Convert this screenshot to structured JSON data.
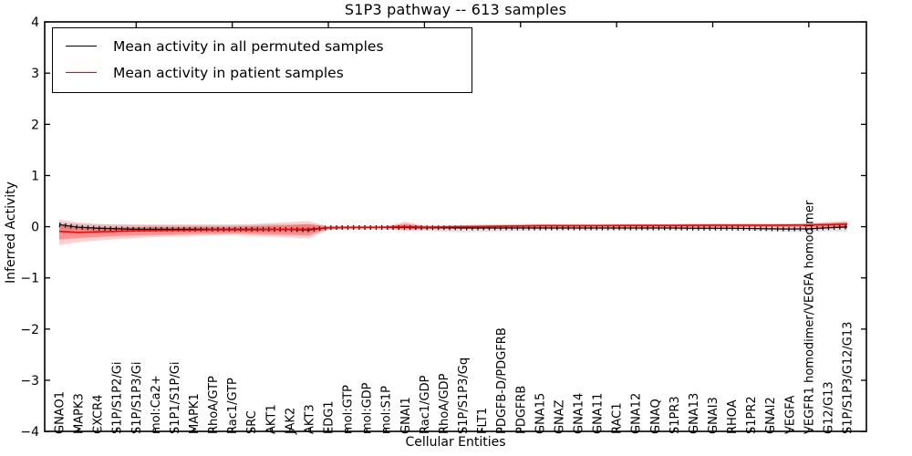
{
  "chart_data": {
    "type": "line",
    "title": "S1P3 pathway -- 613 samples",
    "xlabel": "Cellular Entities",
    "ylabel": "Inferred Activity",
    "ylim": [
      -4,
      4
    ],
    "yticks": [
      4,
      3,
      2,
      1,
      0,
      -1,
      -2,
      -3,
      -4
    ],
    "ytick_labels": [
      "4",
      "3",
      "2",
      "1",
      "0",
      "−1",
      "−2",
      "−3",
      "−4"
    ],
    "grid": false,
    "legend": {
      "position": "upper left",
      "entries": [
        "Mean activity in all permuted samples",
        "Mean activity in patient samples"
      ]
    },
    "categories": [
      "GNAO1",
      "MAPK3",
      "CXCR4",
      "S1P/S1P2/Gi",
      "S1P/S1P3/Gi",
      "mol:Ca2+",
      "S1P1/S1P/Gi",
      "MAPK1",
      "RhoA/GTP",
      "Rac1/GTP",
      "SRC",
      "AKT1",
      "JAK2",
      "AKT3",
      "EDG1",
      "mol:GTP",
      "mol:GDP",
      "mol:S1P",
      "GNAI1",
      "Rac1/GDP",
      "RhoA/GDP",
      "S1P/S1P3/Gq",
      "FLT1",
      "PDGFB-D/PDGFRB",
      "PDGFRB",
      "GNA15",
      "GNAZ",
      "GNA14",
      "GNA11",
      "RAC1",
      "GNA12",
      "GNAQ",
      "S1PR3",
      "GNA13",
      "GNAI3",
      "RHOA",
      "S1PR2",
      "GNAI2",
      "VEGFA",
      "VEGFR1 homodimer/VEGFA homodimer",
      "G12/G13",
      "S1P/S1P3/G12/G13"
    ],
    "series": [
      {
        "name": "Mean activity in all permuted samples",
        "color": "#000000",
        "values": [
          0.04,
          -0.01,
          -0.03,
          -0.04,
          -0.05,
          -0.05,
          -0.05,
          -0.05,
          -0.05,
          -0.05,
          -0.05,
          -0.05,
          -0.055,
          -0.06,
          -0.02,
          -0.015,
          -0.015,
          -0.015,
          -0.015,
          -0.02,
          -0.02,
          -0.025,
          -0.025,
          -0.025,
          -0.025,
          -0.025,
          -0.025,
          -0.025,
          -0.025,
          -0.025,
          -0.025,
          -0.025,
          -0.025,
          -0.03,
          -0.03,
          -0.03,
          -0.035,
          -0.04,
          -0.045,
          -0.04,
          -0.02,
          -0.005
        ]
      },
      {
        "name": "Mean activity in patient samples",
        "color": "#ff0000",
        "values": [
          -0.09,
          -0.11,
          -0.1,
          -0.09,
          -0.08,
          -0.075,
          -0.07,
          -0.065,
          -0.06,
          -0.06,
          -0.06,
          -0.055,
          -0.05,
          -0.045,
          -0.02,
          -0.015,
          -0.012,
          -0.01,
          0.0,
          -0.01,
          -0.005,
          0.0,
          0.005,
          0.01,
          0.015,
          0.02,
          0.02,
          0.02,
          0.022,
          0.024,
          0.025,
          0.025,
          0.025,
          0.028,
          0.03,
          0.03,
          0.03,
          0.03,
          0.032,
          0.035,
          0.04,
          0.05
        ]
      }
    ],
    "bands": [
      {
        "name": "permuted-samples-spread",
        "color": "rgba(130,130,130,0.22)",
        "upper": [
          0.08,
          0.06,
          0.05,
          0.05,
          0.04,
          0.04,
          0.04,
          0.04,
          0.04,
          0.04,
          0.04,
          0.05,
          0.05,
          0.05,
          0.02,
          0.02,
          0.02,
          0.02,
          0.03,
          0.03,
          0.03,
          0.03,
          0.03,
          0.03,
          0.03,
          0.03,
          0.03,
          0.03,
          0.03,
          0.03,
          0.03,
          0.03,
          0.03,
          0.03,
          0.03,
          0.03,
          0.03,
          0.03,
          0.03,
          0.04,
          0.05,
          0.07
        ],
        "lower": [
          -0.05,
          -0.07,
          -0.08,
          -0.08,
          -0.09,
          -0.09,
          -0.09,
          -0.09,
          -0.09,
          -0.09,
          -0.1,
          -0.1,
          -0.11,
          -0.12,
          -0.05,
          -0.04,
          -0.04,
          -0.04,
          -0.06,
          -0.08,
          -0.1,
          -0.11,
          -0.1,
          -0.09,
          -0.08,
          -0.07,
          -0.07,
          -0.07,
          -0.07,
          -0.07,
          -0.07,
          -0.07,
          -0.07,
          -0.07,
          -0.07,
          -0.07,
          -0.08,
          -0.09,
          -0.1,
          -0.1,
          -0.09,
          -0.1
        ]
      },
      {
        "name": "patient-samples-outer-spread",
        "color": "rgba(255,0,0,0.18)",
        "upper": [
          0.14,
          0.08,
          0.05,
          0.04,
          0.04,
          0.04,
          0.04,
          0.04,
          0.04,
          0.04,
          0.05,
          0.07,
          0.09,
          0.11,
          0.01,
          0.01,
          0.01,
          0.01,
          0.1,
          0.02,
          0.02,
          0.03,
          0.04,
          0.04,
          0.05,
          0.05,
          0.05,
          0.05,
          0.05,
          0.055,
          0.055,
          0.055,
          0.055,
          0.06,
          0.06,
          0.06,
          0.06,
          0.06,
          0.06,
          0.065,
          0.09,
          0.11
        ],
        "lower": [
          -0.36,
          -0.3,
          -0.27,
          -0.24,
          -0.22,
          -0.2,
          -0.19,
          -0.18,
          -0.17,
          -0.17,
          -0.18,
          -0.19,
          -0.21,
          -0.23,
          -0.06,
          -0.04,
          -0.04,
          -0.04,
          -0.08,
          -0.05,
          -0.04,
          -0.04,
          -0.03,
          -0.03,
          -0.02,
          -0.02,
          -0.01,
          -0.01,
          -0.01,
          -0.01,
          -0.01,
          -0.01,
          -0.01,
          -0.01,
          -0.01,
          -0.01,
          -0.01,
          -0.01,
          -0.01,
          -0.02,
          -0.02,
          -0.03
        ]
      },
      {
        "name": "patient-samples-inner-spread",
        "color": "rgba(255,0,0,0.32)",
        "upper": [
          0.02,
          0.0,
          -0.01,
          -0.01,
          -0.01,
          0.0,
          0.0,
          0.0,
          0.0,
          0.0,
          0.01,
          0.02,
          0.03,
          0.05,
          0.0,
          0.0,
          0.0,
          0.0,
          0.06,
          0.01,
          0.01,
          0.02,
          0.02,
          0.03,
          0.03,
          0.04,
          0.04,
          0.04,
          0.04,
          0.045,
          0.045,
          0.045,
          0.045,
          0.05,
          0.05,
          0.05,
          0.05,
          0.05,
          0.05,
          0.055,
          0.07,
          0.09
        ],
        "lower": [
          -0.25,
          -0.22,
          -0.2,
          -0.18,
          -0.17,
          -0.16,
          -0.15,
          -0.14,
          -0.14,
          -0.13,
          -0.14,
          -0.15,
          -0.16,
          -0.17,
          -0.04,
          -0.03,
          -0.03,
          -0.03,
          -0.05,
          -0.03,
          -0.03,
          -0.02,
          -0.02,
          -0.01,
          -0.01,
          0.0,
          0.0,
          0.0,
          0.0,
          0.0,
          0.0,
          0.0,
          0.0,
          0.0,
          0.0,
          0.0,
          0.0,
          0.0,
          0.0,
          0.0,
          0.0,
          -0.01
        ]
      }
    ],
    "top_tick_indices": [
      4,
      9,
      14,
      19,
      24,
      29,
      34,
      39
    ]
  }
}
